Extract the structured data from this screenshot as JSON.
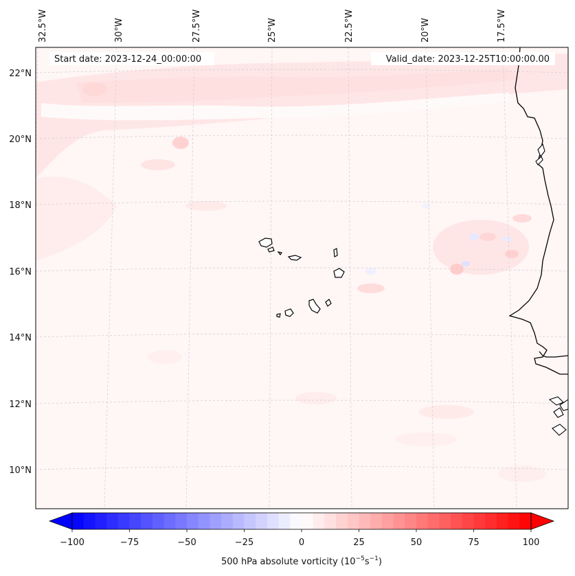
{
  "map": {
    "header": {
      "start_date": "Start date: 2023-12-24_00:00:00",
      "valid_date": "Valid_date: 2023-12-25T10:00:00.00"
    },
    "lon_labels": [
      "32.5°W",
      "30°W",
      "27.5°W",
      "25°W",
      "22.5°W",
      "20°W",
      "17.5°W"
    ],
    "lat_labels": [
      "22°N",
      "20°N",
      "18°N",
      "16°N",
      "14°N",
      "12°N",
      "10°N"
    ],
    "colorbar": {
      "label": "500 hPa absolute vorticity (10",
      "label_exp": "−5",
      "label_unit": "s",
      "label_unit_exp": "−1",
      "label_close": ")",
      "ticks": [
        "−100",
        "−75",
        "−50",
        "−25",
        "0",
        "25",
        "50",
        "75",
        "100"
      ],
      "min": -100,
      "max": 100,
      "step": 5,
      "cmap_low": "#0000ff",
      "cmap_mid": "#ffffff",
      "cmap_high": "#ff0000"
    },
    "colors": {
      "background_field": "#fff5f5",
      "coastline": "#000000",
      "gridline": "#c8c8c8"
    }
  }
}
